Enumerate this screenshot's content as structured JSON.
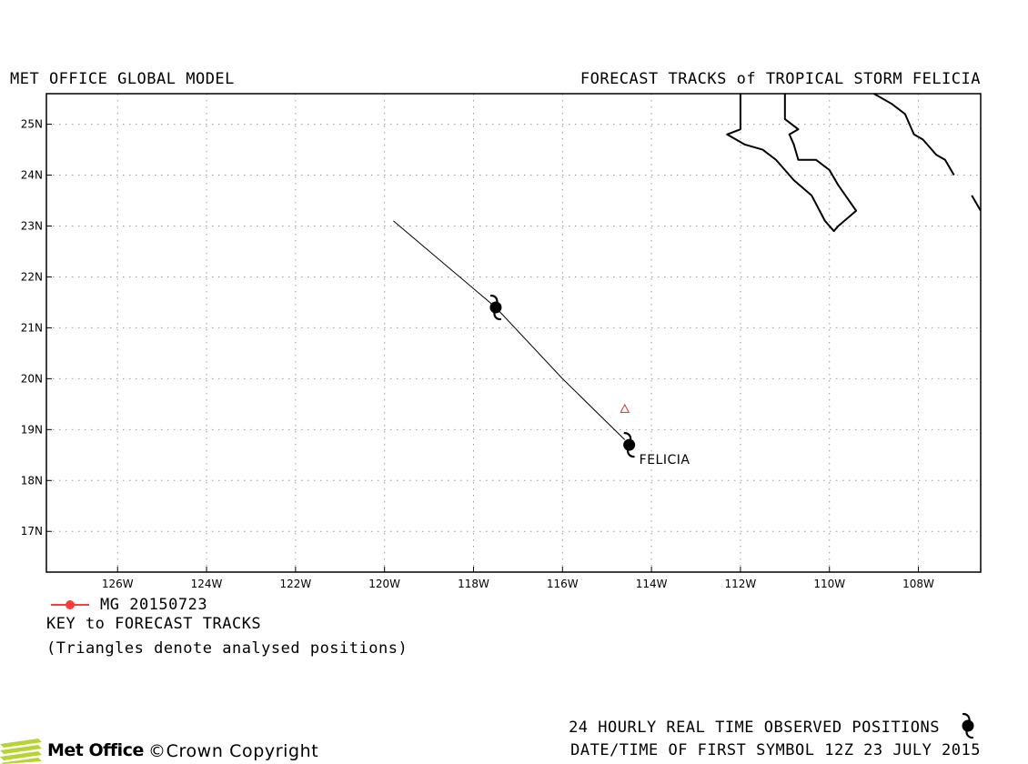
{
  "header": {
    "left_title": "MET OFFICE GLOBAL MODEL",
    "right_title": "FORECAST TRACKS of TROPICAL STORM FELICIA"
  },
  "map": {
    "lon_range": [
      -127.6,
      -106.6
    ],
    "lat_range": [
      16.2,
      25.6
    ],
    "grid": true,
    "lat_ticks": [
      {
        "value": 17,
        "label": "17N"
      },
      {
        "value": 18,
        "label": "18N"
      },
      {
        "value": 19,
        "label": "19N"
      },
      {
        "value": 20,
        "label": "20N"
      },
      {
        "value": 21,
        "label": "21N"
      },
      {
        "value": 22,
        "label": "22N"
      },
      {
        "value": 23,
        "label": "23N"
      },
      {
        "value": 24,
        "label": "24N"
      },
      {
        "value": 25,
        "label": "25N"
      }
    ],
    "lon_ticks": [
      {
        "value": -126,
        "label": "126W"
      },
      {
        "value": -124,
        "label": "124W"
      },
      {
        "value": -122,
        "label": "122W"
      },
      {
        "value": -120,
        "label": "120W"
      },
      {
        "value": -118,
        "label": "118W"
      },
      {
        "value": -116,
        "label": "116W"
      },
      {
        "value": -114,
        "label": "114W"
      },
      {
        "value": -112,
        "label": "112W"
      },
      {
        "value": -110,
        "label": "110W"
      },
      {
        "value": -108,
        "label": "108W"
      }
    ],
    "coastlines": [
      [
        [
          -112.0,
          25.6
        ],
        [
          -112.0,
          24.9
        ],
        [
          -112.3,
          24.8
        ],
        [
          -111.9,
          24.6
        ],
        [
          -111.5,
          24.5
        ],
        [
          -111.2,
          24.3
        ],
        [
          -110.8,
          23.9
        ],
        [
          -110.4,
          23.6
        ],
        [
          -110.1,
          23.1
        ],
        [
          -109.9,
          22.9
        ],
        [
          -109.8,
          23.0
        ],
        [
          -109.4,
          23.3
        ],
        [
          -109.8,
          23.8
        ],
        [
          -110.0,
          24.1
        ],
        [
          -110.3,
          24.3
        ],
        [
          -110.7,
          24.3
        ],
        [
          -110.8,
          24.6
        ],
        [
          -110.9,
          24.8
        ],
        [
          -110.7,
          24.9
        ],
        [
          -111.0,
          25.1
        ],
        [
          -111.0,
          25.6
        ]
      ],
      [
        [
          -109.0,
          25.6
        ],
        [
          -108.6,
          25.4
        ],
        [
          -108.3,
          25.2
        ],
        [
          -108.1,
          24.8
        ],
        [
          -107.9,
          24.7
        ],
        [
          -107.6,
          24.4
        ],
        [
          -107.4,
          24.3
        ],
        [
          -107.2,
          24.0
        ]
      ],
      [
        [
          -106.8,
          23.6
        ],
        [
          -106.6,
          23.3
        ]
      ]
    ]
  },
  "storm": {
    "name": "FELICIA",
    "observed": [
      {
        "lon": -117.5,
        "lat": 21.4
      },
      {
        "lon": -114.5,
        "lat": 18.7
      }
    ],
    "forecast_track": [
      {
        "lon": -119.8,
        "lat": 23.1
      },
      {
        "lon": -117.5,
        "lat": 21.4
      },
      {
        "lon": -116.0,
        "lat": 20.0
      },
      {
        "lon": -114.6,
        "lat": 18.8
      }
    ],
    "analysed_positions": [
      {
        "lon": -114.6,
        "lat": 19.4
      }
    ]
  },
  "key": {
    "run_label": "MG 20150723",
    "run_color": "#ff3b3b",
    "title": "KEY to FORECAST TRACKS",
    "note": "(Triangles denote analysed positions)"
  },
  "footer": {
    "observed_label": "24 HOURLY REAL TIME OBSERVED POSITIONS",
    "first_symbol": "DATE/TIME OF FIRST SYMBOL 12Z 23 JULY 2015",
    "logo_text": "Met Office",
    "copyright": "©Crown Copyright"
  },
  "colors": {
    "track": "#000000",
    "analysed_marker": "#d23030",
    "logo_green": "#b7d433"
  },
  "icons": {
    "storm_symbol": "tropical-storm-icon",
    "logo": "met-office-logo-icon"
  }
}
